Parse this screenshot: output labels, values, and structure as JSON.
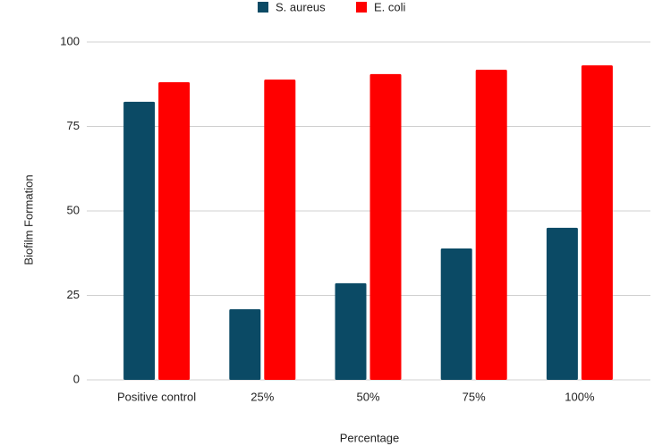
{
  "chart_data": {
    "type": "bar",
    "categories": [
      "Positive control",
      "25%",
      "50%",
      "75%",
      "100%"
    ],
    "series": [
      {
        "name": "S. aureus",
        "color": "#0b4a65",
        "values": [
          82.3,
          20.9,
          28.6,
          38.9,
          45.0
        ]
      },
      {
        "name": "E. coli",
        "color": "#ff0000",
        "values": [
          88.1,
          88.9,
          90.5,
          91.8,
          93.1
        ]
      }
    ],
    "y_label": "Biofilm Formation",
    "x_label": "Percentage",
    "ylim": [
      0,
      100
    ],
    "yticks": [
      0,
      25,
      50,
      75,
      100
    ],
    "grid": true,
    "legend": "top"
  }
}
